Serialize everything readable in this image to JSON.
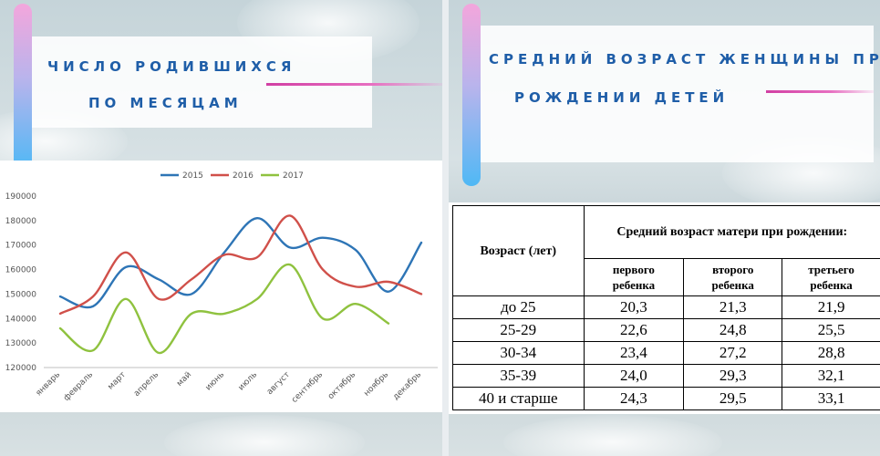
{
  "left": {
    "title_line1": "ЧИСЛО РОДИВШИХСЯ",
    "title_line2": "ПО МЕСЯЦАМ"
  },
  "right": {
    "title_line1": "СРЕДНИЙ ВОЗРАСТ ЖЕНЩИНЫ ПРИ",
    "title_line2": "РОЖДЕНИИ ДЕТЕЙ"
  },
  "chart_data": {
    "type": "line",
    "title": "",
    "xlabel": "",
    "ylabel": "",
    "categories": [
      "январь",
      "февраль",
      "март",
      "апрель",
      "май",
      "июнь",
      "июль",
      "август",
      "сентябрь",
      "октябрь",
      "ноябрь",
      "декабрь"
    ],
    "ylim": [
      120000,
      190000
    ],
    "yticks": [
      "190000",
      "180000",
      "170000",
      "160000",
      "150000",
      "140000",
      "130000",
      "120000"
    ],
    "legend_position": "top",
    "grid": false,
    "series": [
      {
        "name": "2015",
        "color": "#2e75b6",
        "values": [
          149000,
          145000,
          161000,
          156000,
          150000,
          167000,
          181000,
          169000,
          173000,
          168000,
          151000,
          171000
        ]
      },
      {
        "name": "2016",
        "color": "#d0504a",
        "values": [
          142000,
          149000,
          167000,
          148000,
          156000,
          166000,
          165000,
          182000,
          160000,
          153000,
          155000,
          150000
        ]
      },
      {
        "name": "2017",
        "color": "#8fc23f",
        "values": [
          136000,
          127000,
          148000,
          126000,
          142000,
          142000,
          148000,
          162000,
          140000,
          146000,
          138000,
          null
        ]
      }
    ]
  },
  "table": {
    "age_header": "Возраст (лет)",
    "group_header": "Средний возраст матери при рождении:",
    "columns": [
      "первого ребенка",
      "второго ребенка",
      "третьего ребенка"
    ],
    "rows": [
      {
        "age": "до 25",
        "values": [
          "20,3",
          "21,3",
          "21,9"
        ]
      },
      {
        "age": "25-29",
        "values": [
          "22,6",
          "24,8",
          "25,5"
        ]
      },
      {
        "age": "30-34",
        "values": [
          "23,4",
          "27,2",
          "28,8"
        ]
      },
      {
        "age": "35-39",
        "values": [
          "24,0",
          "29,3",
          "32,1"
        ]
      },
      {
        "age": "40 и старше",
        "values": [
          "24,3",
          "29,5",
          "33,1"
        ]
      }
    ]
  }
}
